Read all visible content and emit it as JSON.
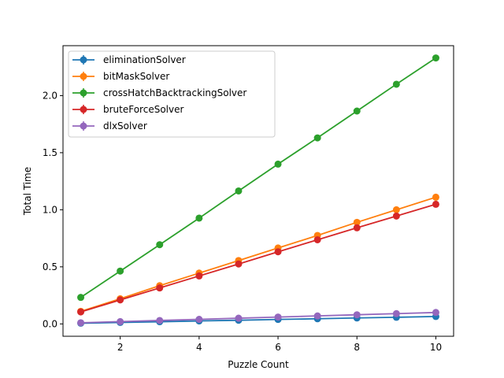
{
  "chart_data": {
    "type": "line",
    "title": "",
    "xlabel": "Puzzle Count",
    "ylabel": "Total Time",
    "x": [
      1,
      2,
      3,
      4,
      5,
      6,
      7,
      8,
      9,
      10
    ],
    "xlim": [
      0.55,
      10.45
    ],
    "ylim": [
      -0.1083,
      2.4377
    ],
    "xticks": [
      2,
      4,
      6,
      8,
      10
    ],
    "yticks": [
      0.0,
      0.5,
      1.0,
      1.5,
      2.0
    ],
    "xtick_labels": [
      "2",
      "4",
      "6",
      "8",
      "10"
    ],
    "ytick_labels": [
      "0.0",
      "0.5",
      "1.0",
      "1.5",
      "2.0"
    ],
    "grid": false,
    "legend_position": "top-left",
    "error_bars": true,
    "series": [
      {
        "name": "eliminationSolver",
        "color": "#1f77b4",
        "values": [
          0.006,
          0.013,
          0.019,
          0.026,
          0.032,
          0.039,
          0.045,
          0.052,
          0.058,
          0.065
        ]
      },
      {
        "name": "bitMaskSolver",
        "color": "#ff7f0e",
        "values": [
          0.11,
          0.22,
          0.335,
          0.445,
          0.555,
          0.665,
          0.775,
          0.89,
          1.0,
          1.11
        ]
      },
      {
        "name": "crossHatchBacktrackingSolver",
        "color": "#2ca02c",
        "values": [
          0.232,
          0.463,
          0.694,
          0.927,
          1.165,
          1.4,
          1.63,
          1.865,
          2.1,
          2.33
        ]
      },
      {
        "name": "bruteForceSolver",
        "color": "#d62728",
        "values": [
          0.105,
          0.21,
          0.315,
          0.42,
          0.525,
          0.632,
          0.737,
          0.842,
          0.945,
          1.048
        ]
      },
      {
        "name": "dlxSolver",
        "color": "#9467bd",
        "values": [
          0.01,
          0.02,
          0.03,
          0.04,
          0.05,
          0.06,
          0.07,
          0.08,
          0.09,
          0.1
        ]
      }
    ]
  }
}
